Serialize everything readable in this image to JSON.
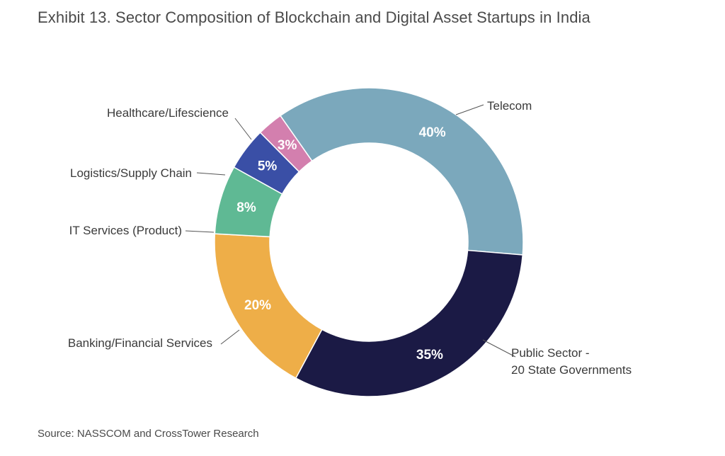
{
  "title": "Exhibit 13. Sector Composition of Blockchain and Digital Asset Startups in India",
  "source": "Source: NASSCOM and CrossTower Research",
  "chart_data": {
    "type": "pie",
    "subtype": "donut",
    "title": "Exhibit 13. Sector Composition of Blockchain and Digital Asset Startups in India",
    "slices": [
      {
        "label": "Telecom",
        "value": 40,
        "value_label": "40%",
        "color": "#7ba8bc"
      },
      {
        "label": "Public Sector - 20 State Governments",
        "label_lines": [
          "Public Sector -",
          "20 State Governments"
        ],
        "value": 35,
        "value_label": "35%",
        "color": "#1b1a45"
      },
      {
        "label": "Banking/Financial Services",
        "value": 20,
        "value_label": "20%",
        "color": "#eeae48"
      },
      {
        "label": "IT Services (Product)",
        "value": 8,
        "value_label": "8%",
        "color": "#5fb994"
      },
      {
        "label": "Logistics/Supply Chain",
        "value": 5,
        "value_label": "5%",
        "color": "#3a4fa6"
      },
      {
        "label": "Healthcare/Lifescience",
        "value": 3,
        "value_label": "3%",
        "color": "#d37fae"
      }
    ]
  }
}
